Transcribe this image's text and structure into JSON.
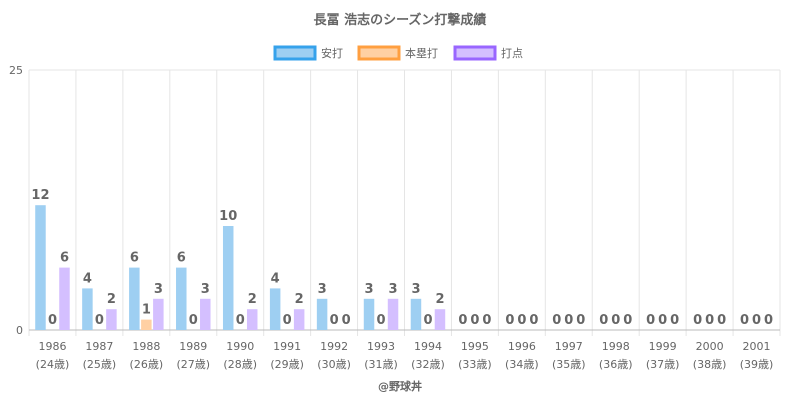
{
  "chart_data": {
    "type": "bar",
    "title": "長冨 浩志のシーズン打撃成績",
    "credit": "@野球丼",
    "categories": [
      "1986",
      "1987",
      "1988",
      "1989",
      "1990",
      "1991",
      "1992",
      "1993",
      "1994",
      "1995",
      "1996",
      "1997",
      "1998",
      "1999",
      "2000",
      "2001"
    ],
    "ages": [
      "(24歳)",
      "(25歳)",
      "(26歳)",
      "(27歳)",
      "(28歳)",
      "(29歳)",
      "(30歳)",
      "(31歳)",
      "(32歳)",
      "(33歳)",
      "(34歳)",
      "(35歳)",
      "(36歳)",
      "(37歳)",
      "(38歳)",
      "(39歳)"
    ],
    "series": [
      {
        "name": "安打",
        "color": "#9ecff2",
        "border": "#36a2eb",
        "values": [
          12,
          4,
          6,
          6,
          10,
          4,
          3,
          3,
          3,
          0,
          0,
          0,
          0,
          0,
          0,
          0
        ]
      },
      {
        "name": "本塁打",
        "color": "#ffd0a3",
        "border": "#ff9f40",
        "values": [
          0,
          0,
          1,
          0,
          0,
          0,
          0,
          0,
          0,
          0,
          0,
          0,
          0,
          0,
          0,
          0
        ]
      },
      {
        "name": "打点",
        "color": "#d4bfff",
        "border": "#9966ff",
        "values": [
          6,
          2,
          3,
          3,
          2,
          2,
          0,
          3,
          2,
          0,
          0,
          0,
          0,
          0,
          0,
          0
        ]
      }
    ],
    "ylim": [
      0,
      25
    ],
    "yticks": [
      "0",
      "25"
    ],
    "grid": true,
    "legend": "top"
  }
}
